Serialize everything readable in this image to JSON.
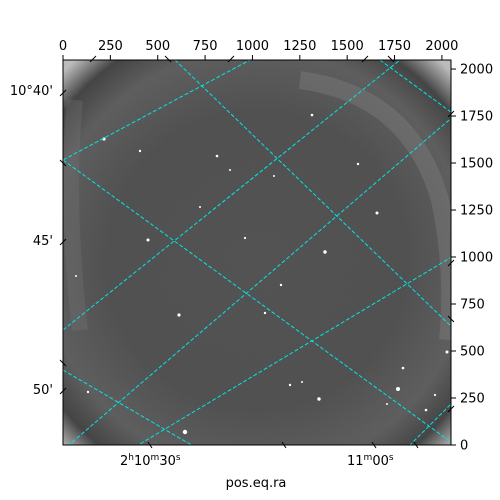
{
  "chart_data": {
    "type": "image",
    "image_description": "astronomical grayscale image with WCS coordinate grid overlay",
    "xlabel": "pos.eq.ra",
    "ylabel": "",
    "pixel_axes": {
      "x": {
        "range": [
          0,
          2048
        ],
        "ticks": [
          0,
          250,
          500,
          750,
          1000,
          1250,
          1500,
          1750,
          2000
        ]
      },
      "y": {
        "range": [
          0,
          2048
        ],
        "ticks": [
          0,
          250,
          500,
          750,
          1000,
          1250,
          1500,
          1750,
          2000
        ]
      }
    },
    "world_axes": {
      "ra_ticks": [
        {
          "h": "2",
          "m": "10",
          "s": "30"
        },
        {
          "m": "11",
          "s": "00"
        }
      ],
      "dec_ticks": [
        {
          "label": "10°40'"
        },
        {
          "label": "45'"
        },
        {
          "label": "50'"
        }
      ]
    },
    "grid": true,
    "grid_color": "#00e5e5",
    "colormap": "gray"
  }
}
